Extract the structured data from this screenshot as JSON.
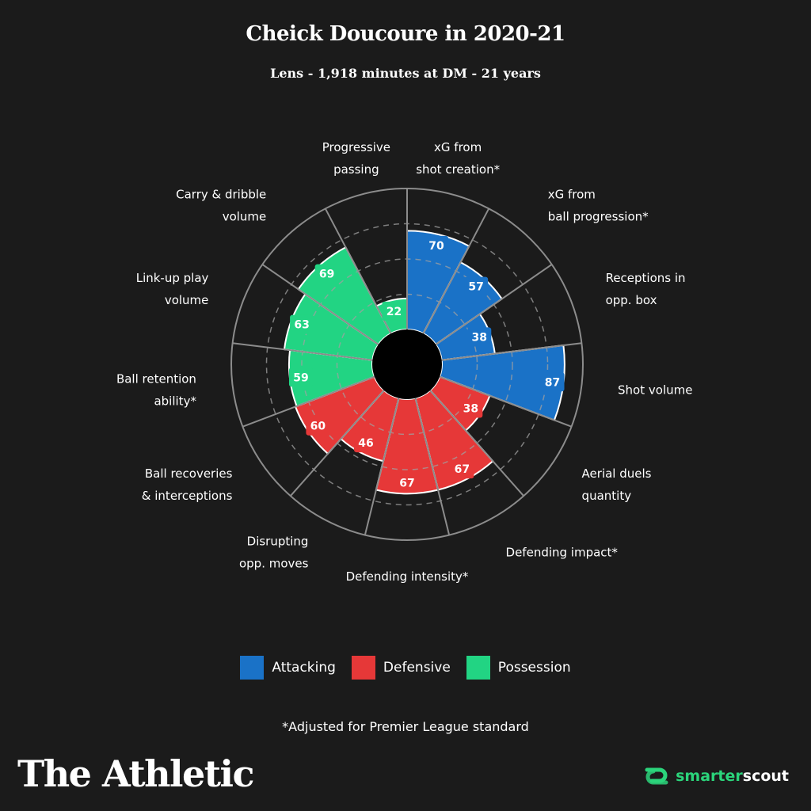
{
  "title": "Cheick Doucoure in 2020-21",
  "subtitle": "Lens - 1,918 minutes at DM - 21 years",
  "colors": {
    "background": "#1b1b1b",
    "Attacking": "#1a72c7",
    "Defensive": "#e63838",
    "Possession": "#22d483",
    "grid": "#8c8c8c"
  },
  "chart_data": {
    "type": "polar-bar",
    "range": [
      0,
      100
    ],
    "categories": [
      {
        "label": [
          "xG from",
          "shot creation*"
        ],
        "value": 70,
        "group": "Attacking"
      },
      {
        "label": [
          "xG from",
          "ball progression*"
        ],
        "value": 57,
        "group": "Attacking"
      },
      {
        "label": [
          "Receptions in",
          "opp. box"
        ],
        "value": 38,
        "group": "Attacking"
      },
      {
        "label": [
          "Shot volume"
        ],
        "value": 87,
        "group": "Attacking"
      },
      {
        "label": [
          "Aerial duels",
          "quantity"
        ],
        "value": 38,
        "group": "Defensive"
      },
      {
        "label": [
          "Defending impact*"
        ],
        "value": 67,
        "group": "Defensive"
      },
      {
        "label": [
          "Defending intensity*"
        ],
        "value": 67,
        "group": "Defensive"
      },
      {
        "label": [
          "Disrupting",
          "opp. moves"
        ],
        "value": 46,
        "group": "Defensive"
      },
      {
        "label": [
          "Ball recoveries",
          "& interceptions"
        ],
        "value": 60,
        "group": "Defensive"
      },
      {
        "label": [
          "Ball retention",
          "ability*"
        ],
        "value": 59,
        "group": "Possession"
      },
      {
        "label": [
          "Link-up play",
          "volume"
        ],
        "value": 63,
        "group": "Possession"
      },
      {
        "label": [
          "Carry & dribble",
          "volume"
        ],
        "value": 69,
        "group": "Possession"
      },
      {
        "label": [
          "Progressive",
          "passing"
        ],
        "value": 22,
        "group": "Possession"
      }
    ]
  },
  "legend": [
    {
      "label": "Attacking",
      "color": "#1a72c7"
    },
    {
      "label": "Defensive",
      "color": "#e63838"
    },
    {
      "label": "Possession",
      "color": "#22d483"
    }
  ],
  "footnote": "*Adjusted for Premier League standard",
  "brand": "The Athletic",
  "partner": {
    "prefix": "smarter",
    "suffix": "scout"
  }
}
